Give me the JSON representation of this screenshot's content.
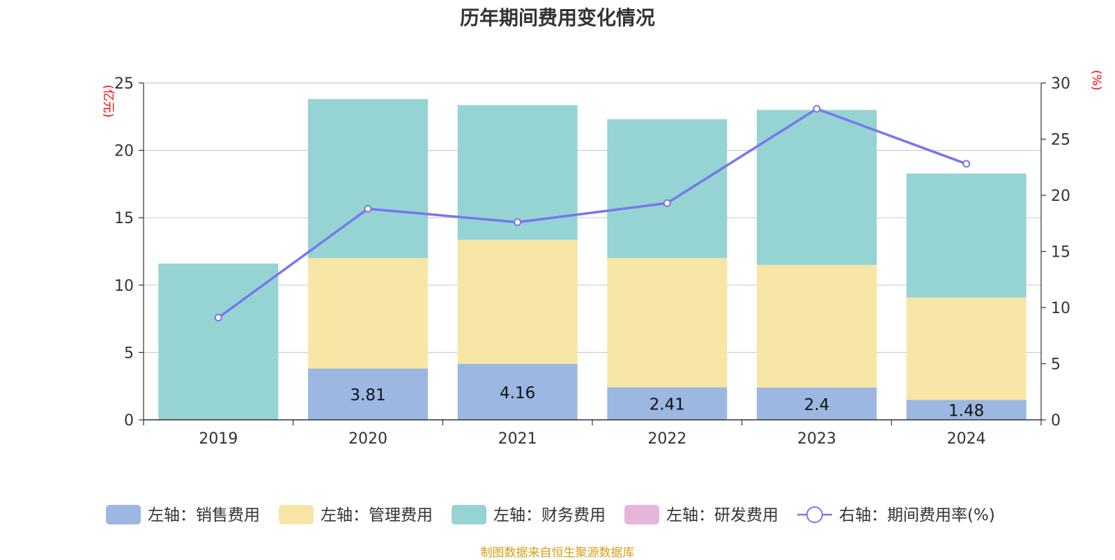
{
  "title": "历年期间费用变化情况",
  "source": "制图数据来自恒生聚源数据库",
  "colors": {
    "sales": "#9bb7e2",
    "admin": "#f8e6a6",
    "finance": "#96d3d3",
    "rnd": "#e6b6d8",
    "rate_line": "#7777ee",
    "axis_unit": "#ff0000",
    "source": "#d4a017",
    "grid": "#cccccc",
    "axis": "#333333"
  },
  "chart_data": {
    "type": "bar",
    "categories": [
      "2019",
      "2020",
      "2021",
      "2022",
      "2023",
      "2024"
    ],
    "y_left_unit": "(亿元)",
    "y_right_unit": "(%)",
    "ylim_left": [
      0,
      25
    ],
    "ylim_right": [
      0,
      30
    ],
    "y_left_ticks": [
      "0",
      "5",
      "10",
      "15",
      "20",
      "25"
    ],
    "y_right_ticks": [
      "0",
      "5",
      "10",
      "15",
      "20",
      "25",
      "30"
    ],
    "grid": true,
    "legend_position": "bottom",
    "series": [
      {
        "name": "左轴：销售费用",
        "key": "sales",
        "axis": "left",
        "stack": true,
        "values": [
          0,
          3.81,
          4.16,
          2.41,
          2.4,
          1.48
        ],
        "labels": [
          "",
          "3.81",
          "4.16",
          "2.41",
          "2.4",
          "1.48"
        ]
      },
      {
        "name": "左轴：管理费用",
        "key": "admin",
        "axis": "left",
        "stack": true,
        "values": [
          0,
          8.2,
          9.2,
          9.6,
          9.1,
          7.6
        ]
      },
      {
        "name": "左轴：财务费用",
        "key": "finance",
        "axis": "left",
        "stack": true,
        "values": [
          11.6,
          11.8,
          10.0,
          10.3,
          11.5,
          9.2
        ]
      },
      {
        "name": "左轴：研发费用",
        "key": "rnd",
        "axis": "left",
        "stack": true,
        "values": [
          0,
          0,
          0,
          0,
          0,
          0
        ]
      },
      {
        "name": "右轴：期间费用率(%)",
        "key": "rate_line",
        "axis": "right",
        "type": "line",
        "values": [
          9.1,
          18.8,
          17.6,
          19.3,
          27.7,
          22.8
        ]
      }
    ]
  }
}
